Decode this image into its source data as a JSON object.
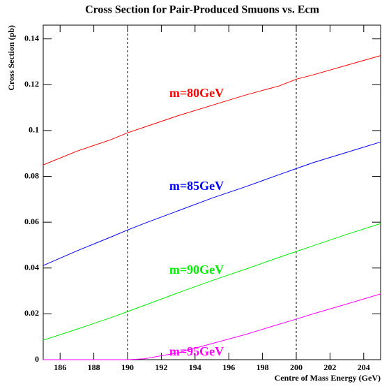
{
  "chart_data": {
    "type": "line",
    "title": "Cross Section for Pair-Produced Smuons vs. Ecm",
    "x_label": "Centre of Mass Energy (GeV)",
    "y_label": "Cross Section (pb)",
    "x": [
      185,
      187,
      189,
      190,
      191,
      193,
      195,
      197,
      199,
      200,
      201,
      203,
      205
    ],
    "series": [
      {
        "name": "m=80GeV",
        "color": "#ff0000",
        "values": [
          0.085,
          0.091,
          0.096,
          0.099,
          0.1015,
          0.1065,
          0.111,
          0.1155,
          0.1195,
          0.1224,
          0.1243,
          0.1285,
          0.1327
        ]
      },
      {
        "name": "m=85GeV",
        "color": "#0000ff",
        "values": [
          0.0411,
          0.0475,
          0.0535,
          0.0566,
          0.0595,
          0.065,
          0.0705,
          0.0755,
          0.0808,
          0.0834,
          0.086,
          0.0905,
          0.095
        ]
      },
      {
        "name": "m=90GeV",
        "color": "#00ee00",
        "values": [
          0.0085,
          0.0133,
          0.0183,
          0.021,
          0.0237,
          0.0292,
          0.0345,
          0.0395,
          0.0447,
          0.0472,
          0.0497,
          0.0547,
          0.0594
        ]
      },
      {
        "name": "m=95GeV",
        "color": "#ff00ff",
        "values": [
          0,
          0,
          0,
          0,
          0.0004,
          0.003,
          0.007,
          0.011,
          0.0155,
          0.0177,
          0.02,
          0.0243,
          0.0287
        ]
      }
    ],
    "vlines": [
      190,
      200
    ],
    "xlim": [
      185,
      205
    ],
    "ylim": [
      0,
      0.146
    ],
    "xticks": [
      186,
      188,
      190,
      192,
      194,
      196,
      198,
      200,
      202,
      204
    ],
    "yticks": [
      0,
      0.02,
      0.04,
      0.06,
      0.08,
      0.1,
      0.12,
      0.14
    ]
  }
}
